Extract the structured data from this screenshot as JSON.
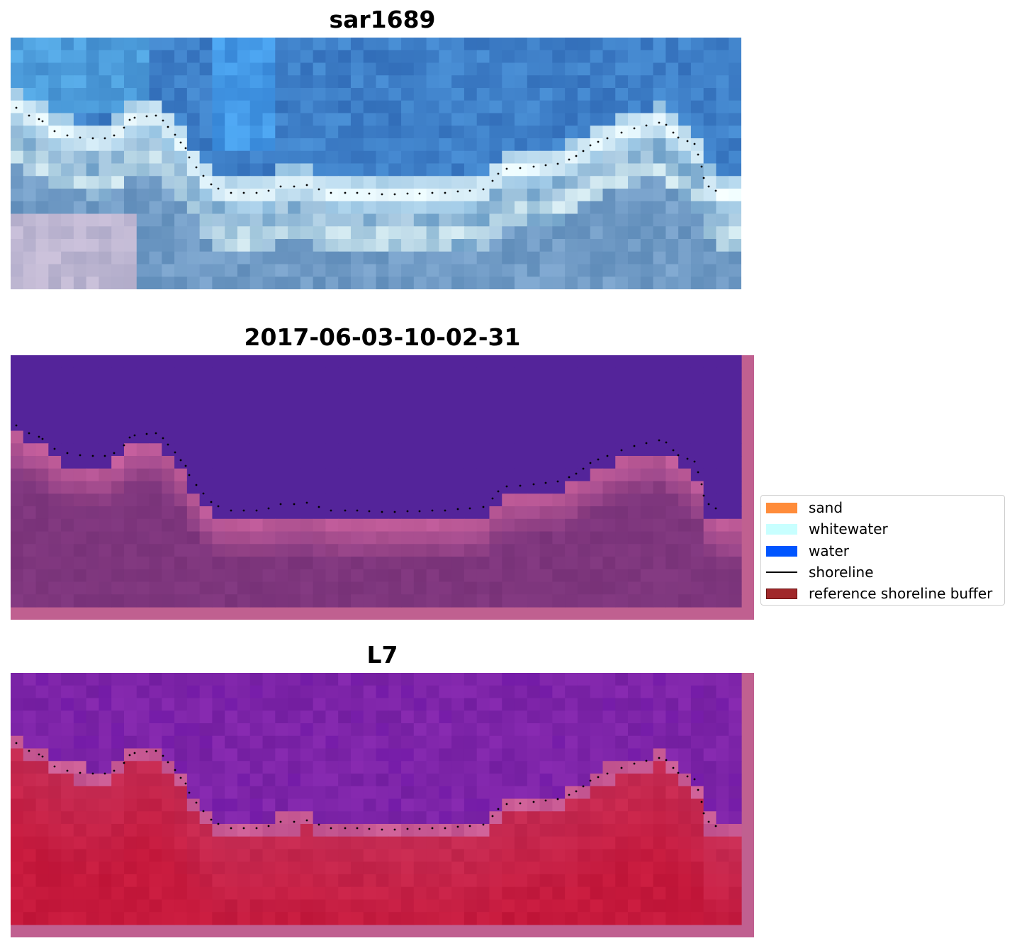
{
  "panels": [
    {
      "title": "sar1689",
      "kind": "rgb"
    },
    {
      "title": "2017-06-03-10-02-31",
      "kind": "classified"
    },
    {
      "title": "L7",
      "kind": "index"
    }
  ],
  "legend": {
    "items": [
      {
        "label": "sand",
        "color": "#ff8c3a",
        "type": "patch"
      },
      {
        "label": "whitewater",
        "color": "#c8ffff",
        "type": "patch"
      },
      {
        "label": "water",
        "color": "#0055ff",
        "type": "patch"
      },
      {
        "label": "shoreline",
        "color": "#000000",
        "type": "line"
      },
      {
        "label": "reference shoreline buffer",
        "color": "#a0282a",
        "type": "patch"
      }
    ]
  },
  "colors": {
    "water_class": "#54249a",
    "buffer_overlay": "#c06090",
    "index_water": "#7a2aa0",
    "index_land": "#c01c48",
    "rgb_sky": "#3a78c0",
    "rgb_surf": "#e8f2f8"
  }
}
